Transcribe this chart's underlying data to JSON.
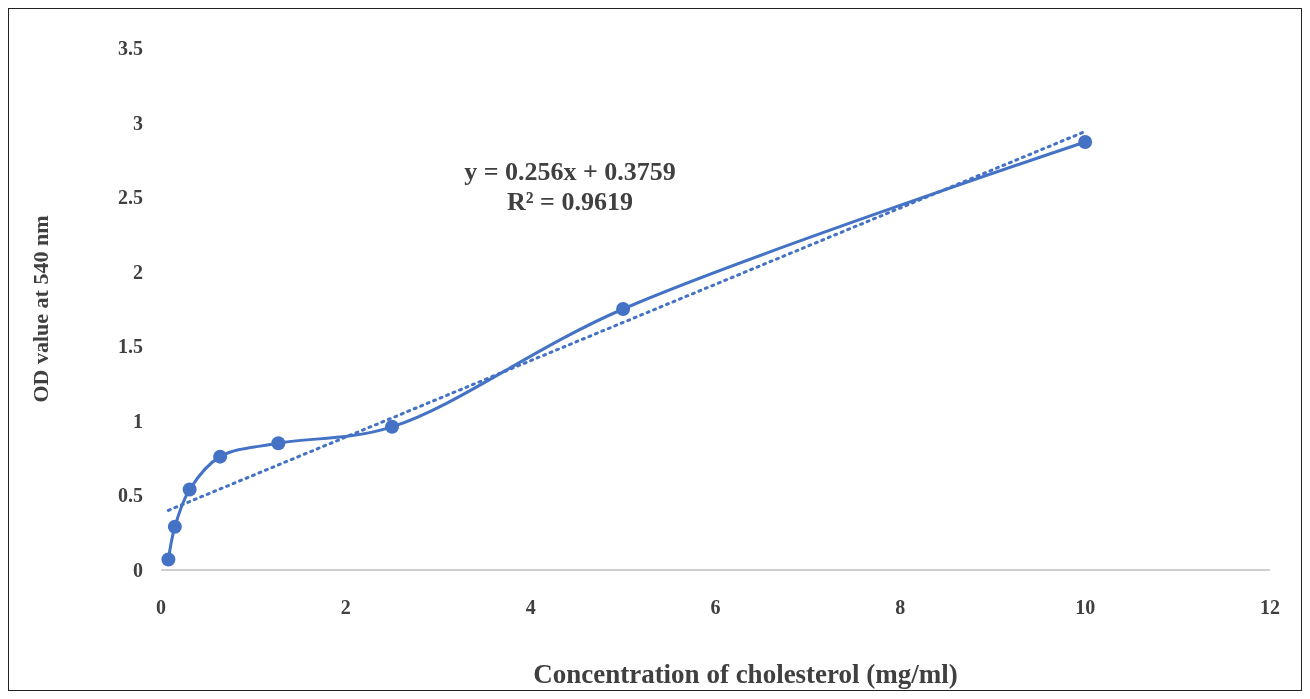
{
  "chart_data": {
    "type": "line",
    "xlabel": "Concentration of cholesterol (mg/ml)",
    "ylabel": "OD value at 540 nm",
    "annotations": [
      "y = 0.256x + 0.3759",
      "R² = 0.9619"
    ],
    "xlim": [
      0,
      12
    ],
    "xticks": [
      0,
      2,
      4,
      6,
      8,
      10,
      12
    ],
    "ylim": [
      0,
      3.5
    ],
    "yticks": [
      0,
      0.5,
      1,
      1.5,
      2,
      2.5,
      3,
      3.5
    ],
    "grid": false,
    "series": [
      {
        "color": "#4472c4",
        "x": [
          0.08,
          0.15,
          0.31,
          0.64,
          1.27,
          2.5,
          5,
          10
        ],
        "values": [
          0.07,
          0.29,
          0.54,
          0.76,
          0.85,
          0.96,
          1.75,
          2.87
        ],
        "marker": "circle",
        "line_style": "solid"
      },
      {
        "type": "line",
        "color": "#4472c4",
        "x": [
          0.08,
          10
        ],
        "values": [
          0.4,
          2.94
        ],
        "marker": "none",
        "line_style": "dotted"
      }
    ]
  }
}
